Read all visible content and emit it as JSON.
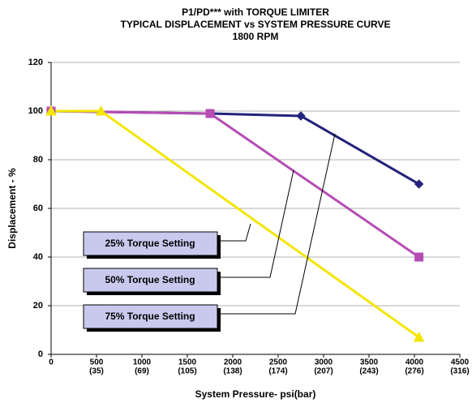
{
  "chart_data": {
    "type": "line",
    "title": [
      "P1/PD*** with TORQUE LIMITER",
      "TYPICAL DISPLACEMENT vs SYSTEM PRESSURE CURVE",
      "1800 RPM"
    ],
    "x_label": "System Pressure- psi(bar)",
    "y_label": "Displacement - %",
    "xlim": [
      0,
      4500
    ],
    "ylim": [
      0,
      120
    ],
    "xticks": [
      0,
      {
        "value": 500,
        "label": "500",
        "sub": "(35)"
      },
      {
        "value": 1000,
        "label": "1000",
        "sub": "(69)"
      },
      {
        "value": 1500,
        "label": "1500",
        "sub": "(105)"
      },
      {
        "value": 2000,
        "label": "2000",
        "sub": "(138)"
      },
      {
        "value": 2500,
        "label": "2500",
        "sub": "(174)"
      },
      {
        "value": 3000,
        "label": "3000",
        "sub": "(207)"
      },
      {
        "value": 3500,
        "label": "3500",
        "sub": "(243)"
      },
      {
        "value": 4000,
        "label": "4000",
        "sub": "(276)"
      },
      {
        "value": 4500,
        "label": "4500",
        "sub": "(316)"
      }
    ],
    "yticks": [
      0,
      20,
      40,
      60,
      80,
      100,
      120
    ],
    "grid": true,
    "series": [
      {
        "color": "#23237a",
        "marker": "diamond",
        "x": [
          0,
          1750,
          2750,
          4050
        ],
        "values": [
          100,
          99,
          98,
          70
        ]
      },
      {
        "color": "#b64cb4",
        "marker": "square",
        "x": [
          0,
          1750,
          4050
        ],
        "values": [
          100,
          99,
          40
        ]
      },
      {
        "color": "#f2e600",
        "marker": "triangle",
        "x": [
          0,
          550,
          4050
        ],
        "values": [
          100,
          100,
          7
        ]
      }
    ],
    "annotations": [
      {
        "text": "25% Torque Setting",
        "series": 2
      },
      {
        "text": "50% Torque Setting",
        "series": 1
      },
      {
        "text": "75% Torque Setting",
        "series": 0
      }
    ]
  }
}
